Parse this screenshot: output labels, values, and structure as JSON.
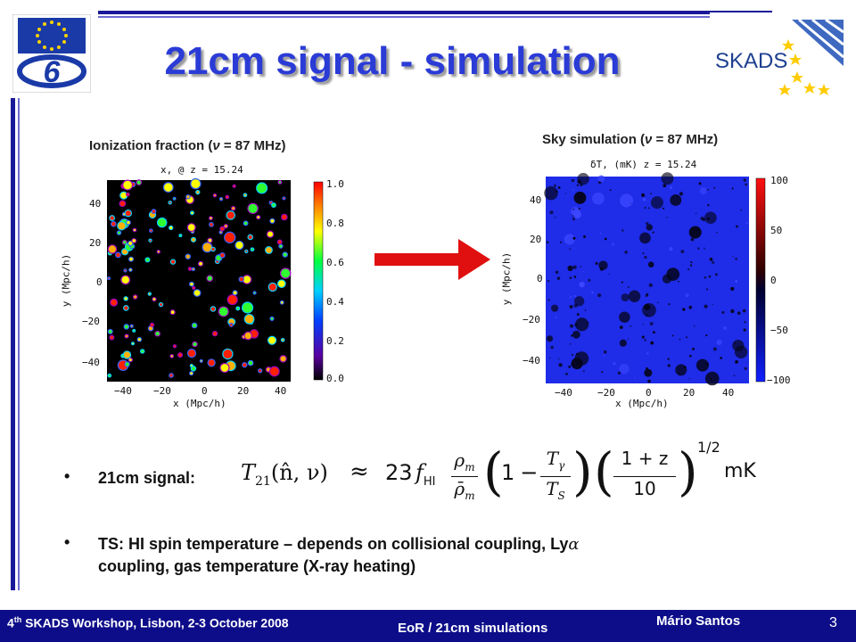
{
  "slide": {
    "title": "21cm signal - simulation",
    "page_number": "3"
  },
  "logos": {
    "left": {
      "icon": "eu-fp6-logo",
      "number": "6"
    },
    "right": {
      "icon": "skads-logo",
      "text": "SKADS"
    }
  },
  "left_panel": {
    "caption_prefix": "Ionization fraction (",
    "caption_symbol": "ν",
    "caption_suffix": " = 87 MHz)",
    "plot_title": "x, @ z = 15.24",
    "x_label": "x (Mpc/h)",
    "y_label": "y (Mpc/h)",
    "x_ticks": [
      "−40",
      "−20",
      "0",
      "20",
      "40"
    ],
    "y_ticks": [
      "40",
      "20",
      "0",
      "−20",
      "−40"
    ],
    "colorbar_ticks": [
      "1.0",
      "0.8",
      "0.6",
      "0.4",
      "0.2",
      "0.0"
    ]
  },
  "right_panel": {
    "caption_prefix": "Sky simulation (",
    "caption_symbol": "ν",
    "caption_suffix": " = 87 MHz)",
    "plot_title": "δT, (mK) z = 15.24",
    "x_label": "x (Mpc/h)",
    "y_label": "y (Mpc/h)",
    "x_ticks": [
      "−40",
      "−20",
      "0",
      "20",
      "40"
    ],
    "y_ticks": [
      "40",
      "20",
      "0",
      "−20",
      "−40"
    ],
    "colorbar_ticks": [
      "100",
      "50",
      "0",
      "−50",
      "−100"
    ]
  },
  "bullets": [
    {
      "symbol": "•",
      "text": "21cm signal:"
    },
    {
      "symbol": "•",
      "text_line1": "TS: HI spin temperature – depends on collisional coupling, Ly",
      "alpha": "α",
      "text_line2": "coupling, gas temperature (X-ray heating)"
    }
  ],
  "equation": {
    "lhs": "T",
    "lhs_sub": "21",
    "args": "(n̂, ν)",
    "approx": "≈",
    "coef": "23",
    "f": "f",
    "f_sub": "HI",
    "rho_num": "ρ",
    "rho_num_sub": "m",
    "rho_den": "ρ̄",
    "rho_den_sub": "m",
    "one": "1",
    "minus": "−",
    "tg": "T",
    "tg_sub": "γ",
    "ts": "T",
    "ts_sub": "S",
    "z_num": "1 + z",
    "z_den": "10",
    "exponent": "1/2",
    "unit": "mK"
  },
  "footer": {
    "left_prefix": "4",
    "left_sup": "th",
    "left_rest": " SKADS Workshop, Lisbon, 2-3 October 2008",
    "center": "EoR / 21cm simulations",
    "right": "Mário Santos"
  },
  "colors": {
    "title": "#2b3bd6",
    "footer_bg": "#0d0d8a",
    "arrow": "#e01010",
    "sky_bg": "#1f2ce8"
  }
}
